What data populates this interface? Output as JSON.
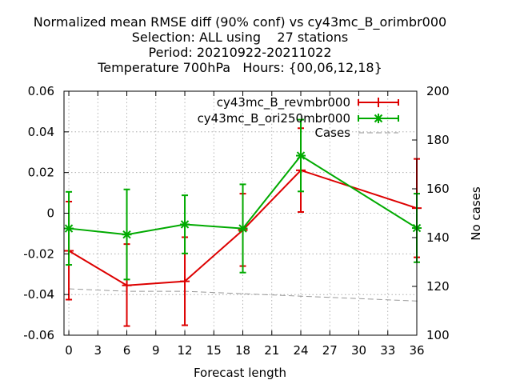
{
  "chart_data": {
    "type": "line",
    "title": [
      "Normalized mean RMSE diff (90% conf) vs cy43mc_B_orimbr000",
      "Selection: ALL using    27 stations",
      "Period: 20210922-20211022",
      "Temperature 700hPa   Hours: {00,06,12,18}"
    ],
    "xlabel": "Forecast length",
    "ylabel": "",
    "y2label": "No cases",
    "xlim": [
      -0.5,
      36
    ],
    "ylim": [
      -0.06,
      0.06
    ],
    "y2lim": [
      100,
      200
    ],
    "x_ticks": [
      0,
      3,
      6,
      9,
      12,
      15,
      18,
      21,
      24,
      27,
      30,
      33,
      36
    ],
    "y_ticks": [
      -0.06,
      -0.04,
      -0.02,
      0,
      0.02,
      0.04,
      0.06
    ],
    "y_tick_labels": [
      "-0.06",
      "-0.04",
      "-0.02",
      "0",
      "0.02",
      "0.04",
      "0.06"
    ],
    "y2_ticks": [
      100,
      120,
      140,
      160,
      180,
      200
    ],
    "grid": true,
    "legend_position": "top-right",
    "series": [
      {
        "name": "cy43mc_B_revmbr000",
        "color": "#dd0000",
        "marker": "plus",
        "axis": "left",
        "x": [
          0,
          6,
          12,
          18,
          24,
          36
        ],
        "values": [
          -0.0185,
          -0.0355,
          -0.0335,
          -0.0083,
          0.0211,
          0.0025
        ],
        "err_low": [
          -0.0425,
          -0.0555,
          -0.0551,
          -0.026,
          0.0006,
          -0.0217
        ],
        "err_high": [
          0.0057,
          -0.0152,
          -0.0118,
          0.0096,
          0.0418,
          0.0267
        ]
      },
      {
        "name": "cy43mc_B_ori250mbr000",
        "color": "#00aa00",
        "marker": "x",
        "axis": "left",
        "x": [
          0,
          6,
          12,
          18,
          24,
          36
        ],
        "values": [
          -0.0075,
          -0.0105,
          -0.0055,
          -0.0075,
          0.0283,
          -0.0073
        ],
        "err_low": [
          -0.0254,
          -0.0326,
          -0.0198,
          -0.0292,
          0.0107,
          -0.0241
        ],
        "err_high": [
          0.0105,
          0.0117,
          0.0088,
          0.0142,
          0.046,
          0.0096
        ]
      },
      {
        "name": "Cases",
        "color": "#999999",
        "marker": "none",
        "dashed": true,
        "axis": "right",
        "x": [
          0,
          6,
          12,
          18,
          24,
          36
        ],
        "values": [
          119,
          118,
          118,
          117,
          116,
          114
        ]
      }
    ]
  }
}
